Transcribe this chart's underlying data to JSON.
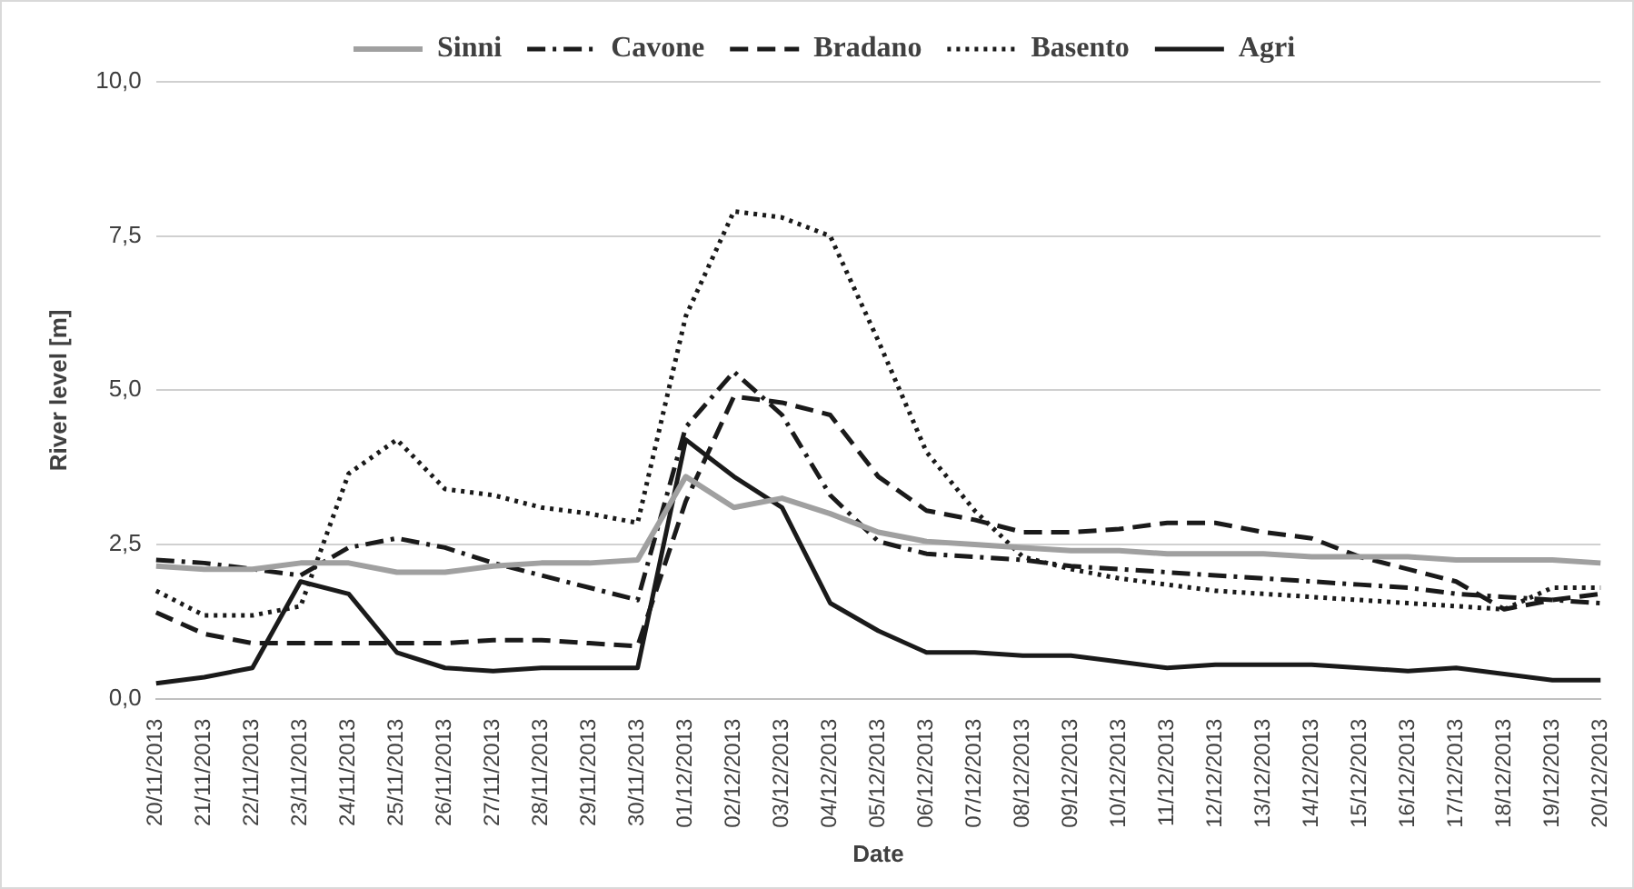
{
  "chart_data": {
    "type": "line",
    "xlabel": "Date",
    "ylabel": "River level [m]",
    "categories": [
      "20/11/2013",
      "21/11/2013",
      "22/11/2013",
      "23/11/2013",
      "24/11/2013",
      "25/11/2013",
      "26/11/2013",
      "27/11/2013",
      "28/11/2013",
      "29/11/2013",
      "30/11/2013",
      "01/12/2013",
      "02/12/2013",
      "03/12/2013",
      "04/12/2013",
      "05/12/2013",
      "06/12/2013",
      "07/12/2013",
      "08/12/2013",
      "09/12/2013",
      "10/12/2013",
      "11/12/2013",
      "12/12/2013",
      "13/12/2013",
      "14/12/2013",
      "15/12/2013",
      "16/12/2013",
      "17/12/2013",
      "18/12/2013",
      "19/12/2013",
      "20/12/2013"
    ],
    "series": [
      {
        "name": "Sinni",
        "color": "#a0a0a0",
        "line_style": "solid",
        "values": [
          2.15,
          2.1,
          2.1,
          2.2,
          2.2,
          2.05,
          2.05,
          2.15,
          2.2,
          2.2,
          2.25,
          3.6,
          3.1,
          3.25,
          3.0,
          2.7,
          2.55,
          2.5,
          2.45,
          2.4,
          2.4,
          2.35,
          2.35,
          2.35,
          2.3,
          2.3,
          2.3,
          2.25,
          2.25,
          2.25,
          2.2
        ]
      },
      {
        "name": "Cavone",
        "color": "#1a1a1a",
        "line_style": "dashdot",
        "values": [
          2.25,
          2.2,
          2.1,
          2.0,
          2.45,
          2.6,
          2.45,
          2.2,
          2.0,
          1.8,
          1.6,
          4.4,
          5.3,
          4.6,
          3.3,
          2.55,
          2.35,
          2.3,
          2.25,
          2.15,
          2.1,
          2.05,
          2.0,
          1.95,
          1.9,
          1.85,
          1.8,
          1.7,
          1.65,
          1.6,
          1.55
        ]
      },
      {
        "name": "Bradano",
        "color": "#1a1a1a",
        "line_style": "dashed",
        "values": [
          1.4,
          1.05,
          0.9,
          0.9,
          0.9,
          0.9,
          0.9,
          0.95,
          0.95,
          0.9,
          0.85,
          3.2,
          4.9,
          4.8,
          4.6,
          3.6,
          3.05,
          2.9,
          2.7,
          2.7,
          2.75,
          2.85,
          2.85,
          2.7,
          2.6,
          2.3,
          2.1,
          1.9,
          1.45,
          1.6,
          1.7
        ]
      },
      {
        "name": "Basento",
        "color": "#1a1a1a",
        "line_style": "dotted",
        "values": [
          1.75,
          1.35,
          1.35,
          1.5,
          3.65,
          4.2,
          3.4,
          3.3,
          3.1,
          3.0,
          2.85,
          6.2,
          7.9,
          7.8,
          7.5,
          5.8,
          4.0,
          3.05,
          2.3,
          2.1,
          1.95,
          1.85,
          1.75,
          1.7,
          1.65,
          1.6,
          1.55,
          1.5,
          1.45,
          1.8,
          1.8
        ]
      },
      {
        "name": "Agri",
        "color": "#1a1a1a",
        "line_style": "solid",
        "values": [
          0.25,
          0.35,
          0.5,
          1.9,
          1.7,
          0.75,
          0.5,
          0.45,
          0.5,
          0.5,
          0.5,
          4.2,
          3.6,
          3.1,
          1.55,
          1.1,
          0.75,
          0.75,
          0.7,
          0.7,
          0.6,
          0.5,
          0.55,
          0.55,
          0.55,
          0.5,
          0.45,
          0.5,
          0.4,
          0.3,
          0.3
        ]
      }
    ],
    "ylim": [
      0,
      10
    ],
    "yticks": [
      {
        "value": 0,
        "label": "0,0"
      },
      {
        "value": 2.5,
        "label": "2,5"
      },
      {
        "value": 5,
        "label": "5,0"
      },
      {
        "value": 7.5,
        "label": "7,5"
      },
      {
        "value": 10,
        "label": "10,0"
      }
    ],
    "grid": "y",
    "legend": "top",
    "marker": "none"
  }
}
